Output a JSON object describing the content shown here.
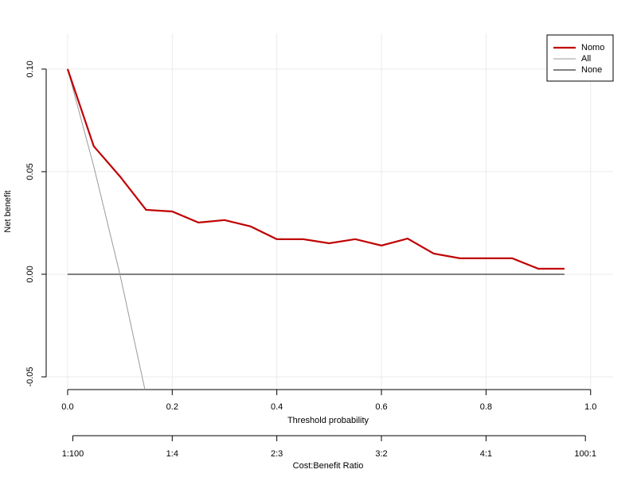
{
  "chart_data": {
    "type": "line",
    "xlabel": "Threshold probability",
    "ylabel": "Net benefit",
    "x2label": "Cost:Benefit Ratio",
    "xlim": [
      -0.041,
      1.043
    ],
    "ylim": [
      -0.0562,
      0.1174
    ],
    "xticks": [
      {
        "value": 0,
        "label": "0.0"
      },
      0.2,
      0.4,
      0.6,
      0.8,
      {
        "value": 1,
        "label": "1.0"
      }
    ],
    "yticks": [
      {
        "value": -0.05,
        "label": "-0.05"
      },
      {
        "value": 0,
        "label": "0.00"
      },
      0.05,
      {
        "value": 0.1,
        "label": "0.10"
      }
    ],
    "x2ticks": [
      {
        "value": 0.01,
        "label": "1:100"
      },
      {
        "value": 0.2,
        "label": "1:4"
      },
      {
        "value": 0.4,
        "label": "2:3"
      },
      {
        "value": 0.6,
        "label": "3:2"
      },
      {
        "value": 0.8,
        "label": "4:1"
      },
      {
        "value": 0.99,
        "label": "100:1"
      }
    ],
    "grid": true,
    "legend": "top-right",
    "series": [
      {
        "name": "Nomo",
        "color": "#c00000",
        "width": 2.2,
        "x": [
          0,
          0.05,
          0.1,
          0.15,
          0.2,
          0.25,
          0.3,
          0.35,
          0.4,
          0.45,
          0.5,
          0.55,
          0.6,
          0.65,
          0.7,
          0.75,
          0.8,
          0.85,
          0.9,
          0.95
        ],
        "values": [
          0.1,
          0.0624,
          0.0477,
          0.0314,
          0.0306,
          0.0252,
          0.0264,
          0.0233,
          0.0171,
          0.0171,
          0.0151,
          0.0171,
          0.014,
          0.0174,
          0.0101,
          0.0078,
          0.0078,
          0.0078,
          0.0027,
          0.0027
        ]
      },
      {
        "name": "All",
        "color": "#999999",
        "width": 1,
        "x": [
          0,
          0.05,
          0.1,
          0.15
        ],
        "values": [
          0.1,
          0.0526,
          0,
          -0.0588
        ]
      },
      {
        "name": "None",
        "color": "#000000",
        "width": 1,
        "x": [
          0,
          0.95
        ],
        "values": [
          0,
          0
        ]
      }
    ]
  }
}
